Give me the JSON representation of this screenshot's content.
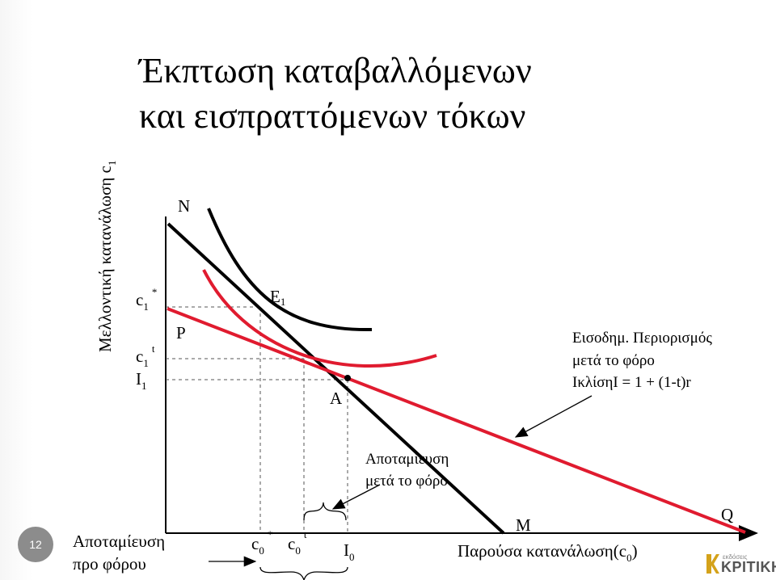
{
  "title": {
    "line1": "Έκπτωση καταβαλλόμενων",
    "line2": "και εισπραττόμενων τόκων"
  },
  "slide_number": "12",
  "y_axis_title": {
    "text": "Μελλοντική κατανάλωση c",
    "sub": "1"
  },
  "x_axis_title": {
    "text": "Παρούσα κατανάλωση(c",
    "sub": "0",
    "close": ")"
  },
  "y_ticks": {
    "c1_star": {
      "base": "c",
      "sub": "1",
      "sup": "*"
    },
    "c1_t": {
      "base": "c",
      "sub": "1",
      "sup": "t"
    },
    "I1": {
      "base": "I",
      "sub": "1"
    }
  },
  "x_ticks": {
    "c0_star": {
      "base": "c",
      "sub": "0",
      "sup": "*"
    },
    "c0_t": {
      "base": "c",
      "sub": "0",
      "sup": "t"
    },
    "I0": {
      "base": "I",
      "sub": "0"
    }
  },
  "point_labels": {
    "N": "N",
    "P": "P",
    "E1": {
      "base": "E",
      "sub": "1"
    },
    "A": "A",
    "M": "M",
    "Q": "Q"
  },
  "annotations": {
    "budget_line1": "Εισοδημ. Περιορισμός",
    "budget_line2": "μετά το φόρο",
    "budget_line3": "ΙκλίσηΙ = 1 + (1-t)r",
    "saving_after_tax_line1": "Αποταμίευση",
    "saving_after_tax_line2": "μετά το φόρο",
    "saving_before_tax_line1": "Αποταμίευση",
    "saving_before_tax_line2": "προ φόρου"
  },
  "logo": {
    "small": "εκδόσεις",
    "big": "ΚΡΙΤΙΚΗ"
  },
  "colors": {
    "black_line": "#000000",
    "red_line": "#e01b2f",
    "dashed": "#555555",
    "slide_badge": "#8c8c8c"
  }
}
